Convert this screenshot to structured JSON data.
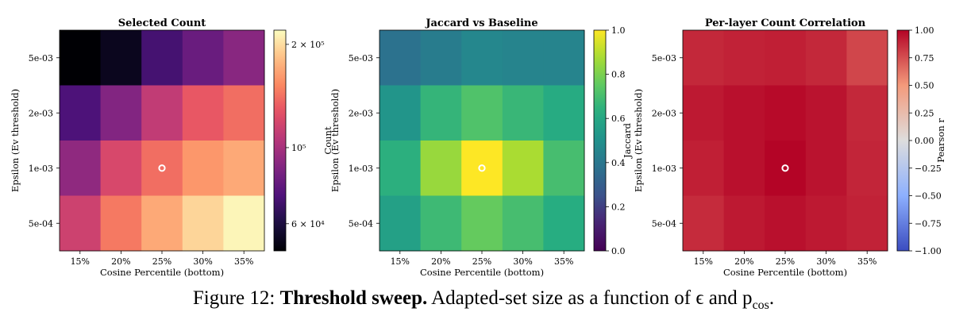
{
  "chart_data": [
    {
      "type": "heatmap",
      "title": "Selected Count",
      "xlabel": "Cosine Percentile (bottom)",
      "ylabel": "Epsilon (Ev threshold)",
      "x_categories": [
        "15%",
        "20%",
        "25%",
        "30%",
        "35%"
      ],
      "y_categories": [
        "5e-03",
        "2e-03",
        "1e-03",
        "5e-04"
      ],
      "values": [
        [
          50000,
          54000,
          70000,
          80000,
          90000
        ],
        [
          72000,
          88000,
          110000,
          130000,
          140000
        ],
        [
          92000,
          120000,
          140000,
          160000,
          170000
        ],
        [
          115000,
          145000,
          170000,
          195000,
          215000
        ]
      ],
      "colormap": "magma",
      "colorbar_label": "Count",
      "colorbar_scale": "log",
      "colorbar_range": [
        50000,
        220000
      ],
      "colorbar_ticks": [
        "6 × 10⁴",
        "10⁵",
        "2 × 10⁵"
      ],
      "marker_cell": {
        "x": "25%",
        "y": "1e-03"
      }
    },
    {
      "type": "heatmap",
      "title": "Jaccard vs Baseline",
      "xlabel": "Cosine Percentile (bottom)",
      "ylabel": "Epsilon (Ev threshold)",
      "x_categories": [
        "15%",
        "20%",
        "25%",
        "30%",
        "35%"
      ],
      "y_categories": [
        "5e-03",
        "2e-03",
        "1e-03",
        "5e-04"
      ],
      "values": [
        [
          0.38,
          0.42,
          0.46,
          0.45,
          0.45
        ],
        [
          0.52,
          0.66,
          0.72,
          0.67,
          0.62
        ],
        [
          0.64,
          0.85,
          1.0,
          0.88,
          0.7
        ],
        [
          0.57,
          0.68,
          0.76,
          0.7,
          0.63
        ]
      ],
      "colormap": "viridis",
      "colorbar_label": "Jaccard",
      "colorbar_range": [
        0.0,
        1.0
      ],
      "colorbar_ticks": [
        "0.0",
        "0.2",
        "0.4",
        "0.6",
        "0.8",
        "1.0"
      ],
      "marker_cell": {
        "x": "25%",
        "y": "1e-03"
      }
    },
    {
      "type": "heatmap",
      "title": "Per-layer Count Correlation",
      "xlabel": "Cosine Percentile (bottom)",
      "ylabel": "Epsilon (Ev threshold)",
      "x_categories": [
        "15%",
        "20%",
        "25%",
        "30%",
        "35%"
      ],
      "y_categories": [
        "5e-03",
        "2e-03",
        "1e-03",
        "5e-04"
      ],
      "values": [
        [
          0.88,
          0.9,
          0.91,
          0.88,
          0.78
        ],
        [
          0.93,
          0.96,
          0.98,
          0.95,
          0.88
        ],
        [
          0.91,
          0.96,
          1.0,
          0.95,
          0.89
        ],
        [
          0.87,
          0.93,
          0.96,
          0.93,
          0.9
        ]
      ],
      "colormap": "coolwarm",
      "colorbar_label": "Pearson r",
      "colorbar_range": [
        -1.0,
        1.0
      ],
      "colorbar_ticks": [
        "−1.00",
        "−0.75",
        "−0.50",
        "−0.25",
        "0.00",
        "0.25",
        "0.50",
        "0.75",
        "1.00"
      ],
      "marker_cell": {
        "x": "25%",
        "y": "1e-03"
      }
    }
  ],
  "caption": {
    "label": "Figure 12:",
    "title": "Threshold sweep.",
    "text": "Adapted-set size as a function of ϵ and p",
    "subscript": "cos",
    "end": "."
  }
}
